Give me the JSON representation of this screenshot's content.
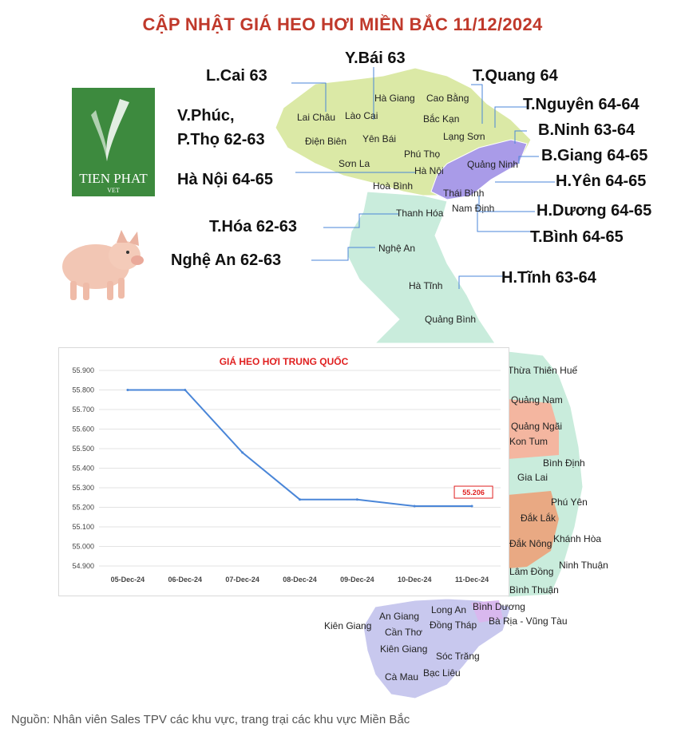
{
  "title": "CẬP NHẬT GIÁ HEO HƠI MIỀN BẮC  11/12/2024",
  "source": "Nguồn: Nhân viên Sales TPV các khu vực, trang trại các khu vực Miền Bắc",
  "logo": {
    "line1": "TIEN PHAT",
    "line2": "VET"
  },
  "price_labels": [
    "L.Cai 63",
    "Y.Bái 63",
    "T.Quang 64",
    "T.Nguyên 64-64",
    "V.Phúc,",
    "P.Thọ 62-63",
    "B.Ninh 63-64",
    "B.Giang 64-65",
    "Hà Nội 64-65",
    "H.Yên 64-65",
    "H.Dương 64-65",
    "T.Hóa 62-63",
    "T.Bình 64-65",
    "Nghệ An 62-63",
    "H.Tĩnh 63-64"
  ],
  "map_names": [
    "Hà Giang",
    "Cao Bằng",
    "Lai Châu",
    "Lào Cai",
    "Bắc Kạn",
    "Điện Biên",
    "Yên Bái",
    "Lạng Sơn",
    "Phú Thọ",
    "Quảng Ninh",
    "Sơn La",
    "Hà Nội",
    "Hoà Bình",
    "Thái Bình",
    "Nam Định",
    "Thanh Hóa",
    "Nghệ An",
    "Hà Tĩnh",
    "Quảng Bình",
    "Thừa Thiên Huế",
    "Quảng Nam",
    "Quảng Ngãi",
    "Kon Tum",
    "Bình Định",
    "Gia Lai",
    "Phú Yên",
    "Đắk Lắk",
    "Đắk Nông",
    "Khánh Hòa",
    "Lâm Đồng",
    "Ninh Thuận",
    "Bình Thuận",
    "Long An",
    "Bình Dương",
    "An Giang",
    "Bà Rịa - Vũng Tàu",
    "Kiên Giang",
    "Đồng Tháp",
    "Cần Thơ",
    "Kiên Giang",
    "Sóc Trăng",
    "Cà Mau",
    "Bạc Liêu"
  ],
  "colors": {
    "title": "#c0392b",
    "north_region": "#dbe9a6",
    "north_central": "#c9ecdc",
    "highlight": "#a99be8",
    "central_pink": "#f4b6a0",
    "highlands": "#e9a983",
    "south": "#c8c8ee",
    "line": "#4a86d8",
    "chart_title": "#e02020",
    "logo_bg": "#3d8a3e"
  },
  "chart_data": {
    "type": "line",
    "title": "GIÁ HEO HƠI TRUNG QUỐC",
    "categories": [
      "05-Dec-24",
      "06-Dec-24",
      "07-Dec-24",
      "08-Dec-24",
      "09-Dec-24",
      "10-Dec-24",
      "11-Dec-24"
    ],
    "series": [
      {
        "values": [
          55.8,
          55.8,
          55.48,
          55.24,
          55.24,
          55.206,
          55.206
        ]
      }
    ],
    "ylim": [
      54.9,
      55.9
    ],
    "yticks": [
      "54.900",
      "55.000",
      "55.100",
      "55.200",
      "55.300",
      "55.400",
      "55.500",
      "55.600",
      "55.700",
      "55.800",
      "55.900"
    ],
    "data_label": "55.206",
    "grid": true
  }
}
